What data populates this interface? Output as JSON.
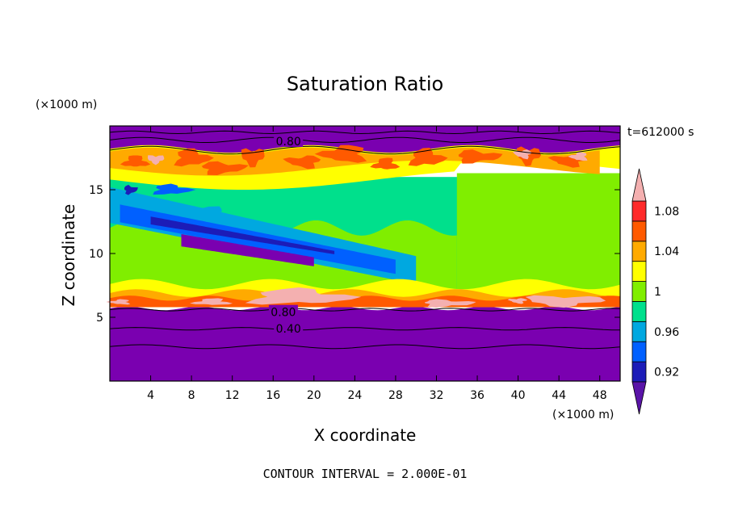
{
  "chart_data": {
    "type": "heatmap",
    "title": "Saturation Ratio",
    "xlabel": "X coordinate",
    "ylabel": "Z coordinate",
    "x_unit": "(×1000 m)",
    "y_unit": "(×1000 m)",
    "time_label": "t=612000 s",
    "footer": "CONTOUR INTERVAL = 2.000E-01",
    "xlim": [
      0,
      50
    ],
    "ylim": [
      0,
      20
    ],
    "x_ticks": [
      4,
      8,
      12,
      16,
      20,
      24,
      28,
      32,
      36,
      40,
      44,
      48
    ],
    "y_ticks": [
      5,
      10,
      15
    ],
    "x_tick_labels": [
      "4",
      "8",
      "12",
      "16",
      "20",
      "24",
      "28",
      "32",
      "36",
      "40",
      "44",
      "48"
    ],
    "y_tick_labels": [
      "5",
      "10",
      "15"
    ],
    "contour_labels": [
      {
        "text": "0.80",
        "x": 17.5,
        "z": 18.8
      },
      {
        "text": "0.80",
        "x": 17.0,
        "z": 5.4
      },
      {
        "text": "0.40",
        "x": 17.5,
        "z": 4.1
      }
    ],
    "colorbar": {
      "levels": [
        0.92,
        0.94,
        0.96,
        0.98,
        1.0,
        1.02,
        1.04,
        1.06,
        1.08,
        1.1
      ],
      "level_labels": [
        "0.92",
        "0.96",
        "1",
        "1.04",
        "1.08"
      ],
      "colors": [
        "#5a14a8",
        "#1c1cb8",
        "#0060ff",
        "#00a8e0",
        "#00e08c",
        "#80ee00",
        "#ffff00",
        "#ffaa00",
        "#ff5a00",
        "#ff2a2a",
        "#f4b0b0"
      ]
    },
    "colors": {
      "purple": "#7a00b0",
      "navy": "#1c1cb8",
      "blue": "#0060ff",
      "cyan": "#00a8e0",
      "teal": "#00e08c",
      "green": "#80ee00",
      "yellow": "#ffff00",
      "orange": "#ffaa00",
      "red": "#ff5a00",
      "pink": "#f4b0b0"
    },
    "legend_position": "right",
    "grid": false
  }
}
